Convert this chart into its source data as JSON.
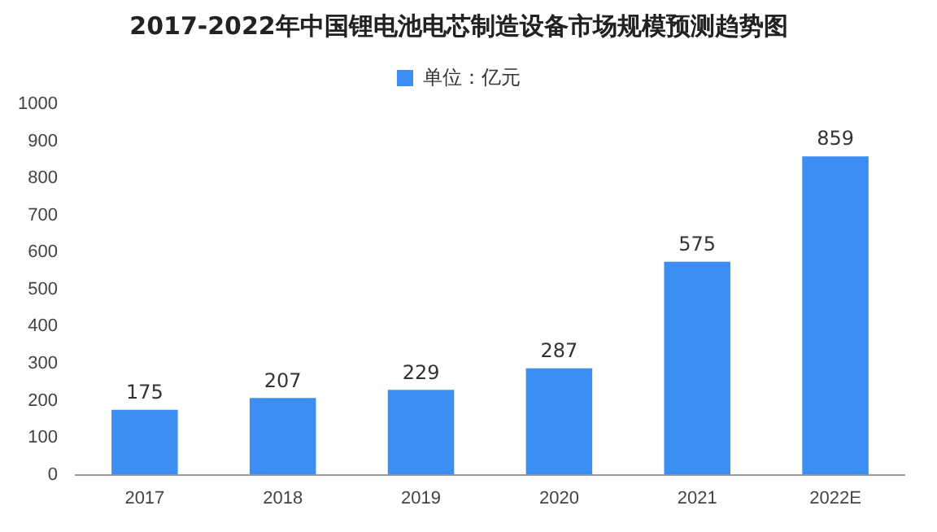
{
  "chart_data": {
    "type": "bar",
    "title": "2017-2022年中国锂电池电芯制造设备市场规模预测趋势图",
    "categories": [
      "2017",
      "2018",
      "2019",
      "2020",
      "2021",
      "2022E"
    ],
    "series": [
      {
        "name": "单位：亿元",
        "color": "#3d8ef2",
        "values": [
          175,
          207,
          229,
          287,
          575,
          859
        ]
      }
    ],
    "ylim": [
      0,
      1000
    ],
    "yticks": [
      0,
      100,
      200,
      300,
      400,
      500,
      600,
      700,
      800,
      900,
      1000
    ],
    "grid": false,
    "legend": "top",
    "data_labels": true
  }
}
